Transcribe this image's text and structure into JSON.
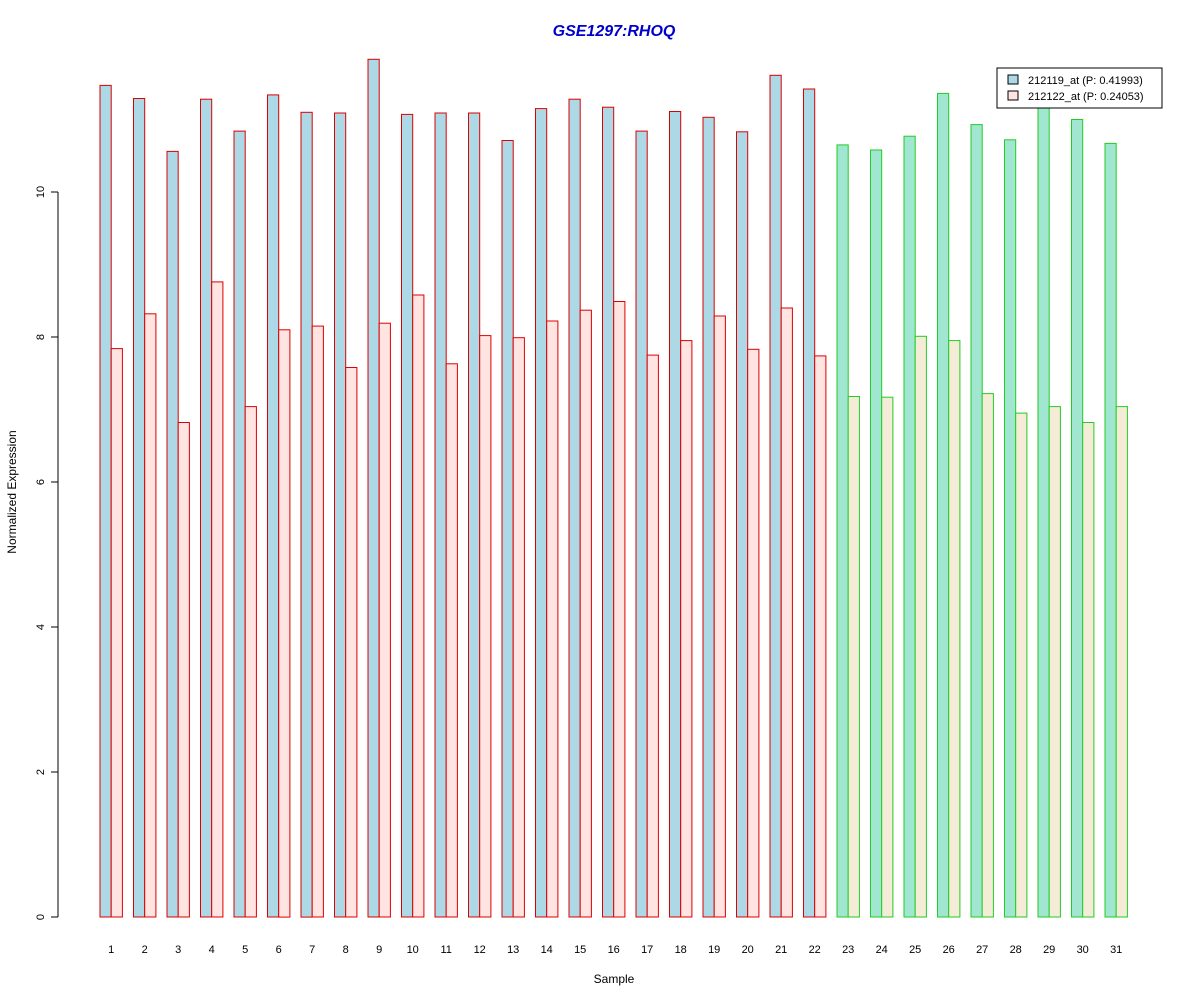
{
  "chart_data": {
    "type": "bar",
    "title": "GSE1297:RHOQ",
    "xlabel": "Sample",
    "ylabel": "Normalized Expression",
    "ylim": [
      0,
      12
    ],
    "yticks": [
      "0",
      "2",
      "4",
      "6",
      "8",
      "10"
    ],
    "categories": [
      "1",
      "2",
      "3",
      "4",
      "5",
      "6",
      "7",
      "8",
      "9",
      "10",
      "11",
      "12",
      "13",
      "14",
      "15",
      "16",
      "17",
      "18",
      "19",
      "20",
      "21",
      "22",
      "23",
      "24",
      "25",
      "26",
      "27",
      "28",
      "29",
      "30",
      "31"
    ],
    "group_sizes": [
      22,
      9
    ],
    "group_outline_colors": [
      "#dd0000",
      "#22cc22"
    ],
    "series": [
      {
        "name": "212119_at (P: 0.41993)",
        "fills": [
          "#add8e6",
          "#a0e6d0"
        ],
        "values": [
          11.47,
          11.29,
          10.56,
          11.28,
          10.84,
          11.34,
          11.1,
          11.09,
          11.83,
          11.07,
          11.09,
          11.09,
          10.71,
          11.15,
          11.28,
          11.17,
          10.84,
          11.11,
          11.03,
          10.83,
          11.61,
          11.42,
          10.65,
          10.58,
          10.77,
          11.36,
          10.93,
          10.72,
          11.16,
          11.0,
          10.67
        ]
      },
      {
        "name": "212122_at (P: 0.24053)",
        "fills": [
          "#ffe4e1",
          "#f5ecd8"
        ],
        "values": [
          7.84,
          8.32,
          6.82,
          8.76,
          7.04,
          8.1,
          8.15,
          7.58,
          8.19,
          8.58,
          7.63,
          8.02,
          7.99,
          8.22,
          8.37,
          8.49,
          7.75,
          7.95,
          8.29,
          7.83,
          8.4,
          7.74,
          7.18,
          7.17,
          8.01,
          7.95,
          7.22,
          6.95,
          7.04,
          6.82,
          7.04
        ]
      }
    ],
    "legend": {
      "position": "top-right",
      "swatch_fills": [
        "#add8e6",
        "#ffe4e1"
      ]
    },
    "grid": false
  }
}
